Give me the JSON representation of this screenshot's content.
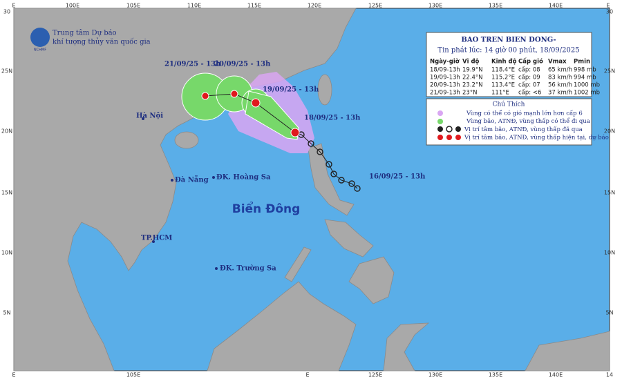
{
  "header": {
    "org_line1": "Trung tâm Dự báo",
    "org_line2": "khí tượng thủy văn quốc gia",
    "logo_text": "NCHMF"
  },
  "info_box": {
    "title": "BAO TREN BIEN DONG-",
    "subtitle": "Tin phát lúc: 14 giờ 00 phút, 18/09/2025",
    "columns": [
      "Ngày-giờ",
      "Vĩ độ",
      "Kinh độ",
      "Cấp gió",
      "Vmax",
      "Pmin"
    ],
    "rows": [
      [
        "18/09-13h",
        "19.9°N",
        "118.4°E",
        "cấp: 08",
        "65 km/h",
        "998 mb"
      ],
      [
        "19/09-13h",
        "22.4°N",
        "115.2°E",
        "cấp: 09",
        "83 km/h",
        "994 mb"
      ],
      [
        "20/09-13h",
        "23.2°N",
        "113.4°E",
        "cấp: 07",
        "56 km/h",
        "1000 mb"
      ],
      [
        "21/09-13h",
        "23°N",
        "111°E",
        "cấp: <6",
        "37 km/h",
        "1002 mb"
      ]
    ]
  },
  "legend": {
    "title": "Chú Thích",
    "items": [
      "Vùng có thể có gió mạnh lớn hơn cấp 6",
      "Vùng bão, ATNĐ, vùng thấp có thể đi qua",
      "Vị trí tâm bão, ATNĐ, vùng thấp đã qua",
      "Vị trí tâm bão, ATNĐ, vùng thấp hiện tại, dự báo"
    ]
  },
  "map": {
    "top_lon_labels": [
      "E",
      "100E",
      "105E",
      "110E",
      "115E",
      "120E",
      "125E",
      "130E",
      "135E",
      "140E",
      "E"
    ],
    "bottom_lon_labels": [
      "E",
      "105E",
      "E",
      "125E",
      "130E",
      "135E",
      "140E",
      "14"
    ],
    "lat_labels": [
      "30",
      "25N",
      "20N",
      "15N",
      "10N",
      "5N"
    ],
    "right_lat_labels": [
      "30",
      "25N",
      "20N",
      "15N",
      "10N",
      "5N"
    ],
    "sea_label": "Biển Đông",
    "places": [
      "Hà Nội",
      "Đà Nẵng",
      "ĐK. Hoàng Sa",
      "TP.HCM",
      "ĐK. Trường Sa"
    ],
    "track_labels": [
      "21/09/25 - 13h",
      "20/09/25 - 13h",
      "19/09/25 - 13h",
      "18/09/25 - 13h",
      "16/09/25 - 13h"
    ]
  }
}
